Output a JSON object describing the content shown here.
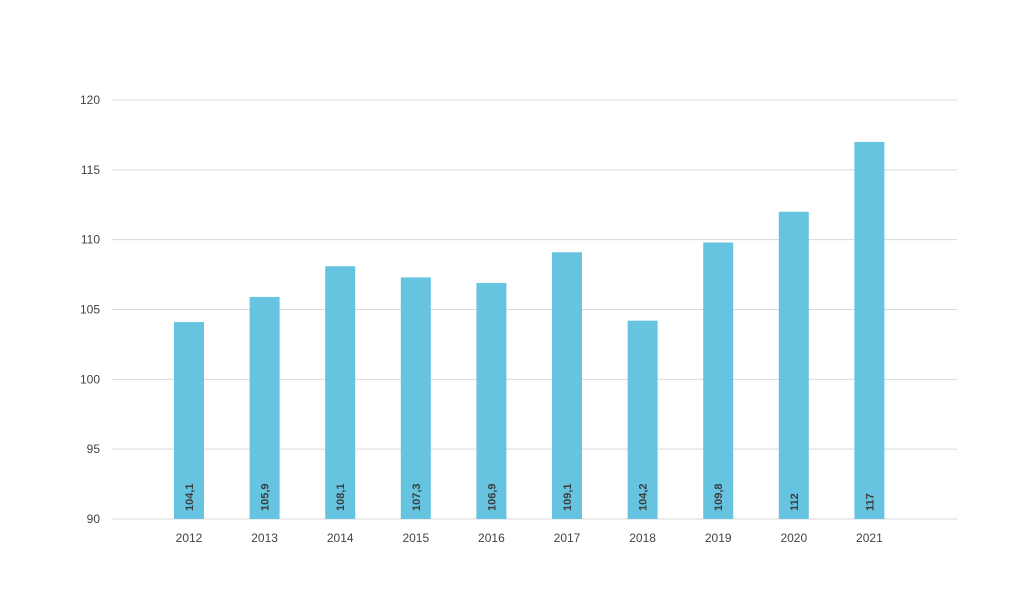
{
  "chart_data": {
    "type": "bar",
    "categories": [
      "2012",
      "2013",
      "2014",
      "2015",
      "2016",
      "2017",
      "2018",
      "2019",
      "2020",
      "2021"
    ],
    "values": [
      104.1,
      105.9,
      108.1,
      107.3,
      106.9,
      109.1,
      104.2,
      109.8,
      112,
      117
    ],
    "value_labels": [
      "104,1",
      "105,9",
      "108,1",
      "107,3",
      "106,9",
      "109,1",
      "104,2",
      "109,8",
      "112",
      "117"
    ],
    "y_ticks": [
      "90",
      "95",
      "100",
      "105",
      "110",
      "115",
      "120"
    ],
    "ylim": [
      90,
      120
    ],
    "grid": true,
    "legend": "none",
    "bar_color": "#66c4e0",
    "title": "",
    "xlabel": "",
    "ylabel": ""
  }
}
